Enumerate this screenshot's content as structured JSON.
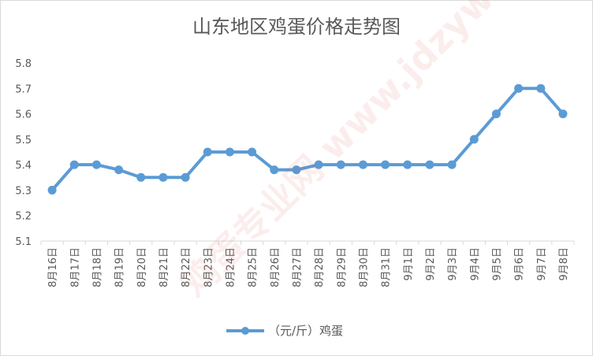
{
  "chart_data": {
    "type": "line",
    "title": "山东地区鸡蛋价格走势图",
    "categories": [
      "8月16日",
      "8月17日",
      "8月18日",
      "8月19日",
      "8月20日",
      "8月21日",
      "8月22日",
      "8月23日",
      "8月24日",
      "8月25日",
      "8月26日",
      "8月27日",
      "8月28日",
      "8月29日",
      "8月30日",
      "8月31日",
      "9月1日",
      "9月2日",
      "9月3日",
      "9月4日",
      "9月5日",
      "9月6日",
      "9月7日",
      "9月8日"
    ],
    "series": [
      {
        "name": "（元/斤）鸡蛋",
        "values": [
          5.3,
          5.4,
          5.4,
          5.38,
          5.35,
          5.35,
          5.35,
          5.45,
          5.45,
          5.45,
          5.38,
          5.38,
          5.4,
          5.4,
          5.4,
          5.4,
          5.4,
          5.4,
          5.4,
          5.5,
          5.6,
          5.7,
          5.7,
          5.6
        ],
        "color": "#5b9bd5"
      }
    ],
    "ylim": [
      5.1,
      5.8
    ],
    "yticks": [
      "5.1",
      "5.2",
      "5.3",
      "5.4",
      "5.5",
      "5.6",
      "5.7",
      "5.8"
    ],
    "grid": false,
    "legend_position": "bottom"
  },
  "watermark": "鸡蛋专业网 www.jdzyw.com"
}
